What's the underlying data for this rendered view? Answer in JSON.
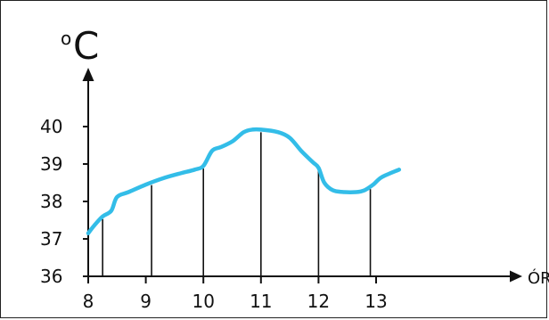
{
  "chart_data": {
    "type": "line",
    "y_unit": {
      "superscript": "o",
      "main": "C"
    },
    "xlabel": "ÓRA",
    "x_ticks": [
      "8",
      "9",
      "10",
      "11",
      "12",
      "13"
    ],
    "y_ticks": [
      "36",
      "37",
      "38",
      "39",
      "40"
    ],
    "xlim": [
      8,
      13.6
    ],
    "ylim": [
      36,
      41.3
    ],
    "series": [
      {
        "color": "#33bde8",
        "x": [
          8.0,
          8.1,
          8.25,
          8.4,
          8.5,
          8.7,
          9.0,
          9.3,
          9.6,
          9.85,
          10.0,
          10.15,
          10.3,
          10.5,
          10.7,
          10.85,
          11.0,
          11.3,
          11.5,
          11.7,
          11.9,
          12.0,
          12.1,
          12.25,
          12.45,
          12.65,
          12.8,
          12.95,
          13.1,
          13.4
        ],
        "y": [
          37.15,
          37.35,
          37.6,
          37.75,
          38.12,
          38.25,
          38.45,
          38.62,
          38.75,
          38.85,
          38.95,
          39.35,
          39.45,
          39.6,
          39.85,
          39.92,
          39.92,
          39.85,
          39.7,
          39.35,
          39.05,
          38.9,
          38.5,
          38.3,
          38.25,
          38.25,
          38.3,
          38.45,
          38.65,
          38.85
        ]
      }
    ],
    "vertical_lines_x": [
      8.25,
      9.1,
      10.0,
      11.0,
      12.0,
      12.9
    ],
    "grid": false,
    "colors": {
      "line": "#33bde8",
      "axis": "#111111"
    }
  }
}
